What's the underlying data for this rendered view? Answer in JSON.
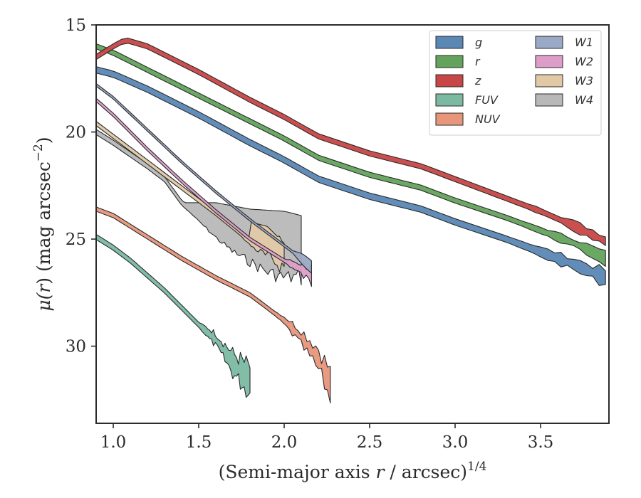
{
  "chart_data": {
    "type": "area",
    "xlabel": "(Semi-major axis r / arcsec)^1/4",
    "xlabel_parts": {
      "pre": "(Semi-major axis ",
      "var": "r",
      "mid": " / arcsec)",
      "sup": "1/4"
    },
    "ylabel": "μ(r) (mag arcsec^−2)",
    "ylabel_parts": {
      "mu": "μ(",
      "var": "r",
      "mid": ") (mag arcsec",
      "sup": "−2",
      "post": ")"
    },
    "xlim": [
      0.9,
      3.9
    ],
    "ylim": [
      33.6,
      15
    ],
    "y_inverted": true,
    "xticks": [
      1.0,
      1.5,
      2.0,
      2.5,
      3.0,
      3.5
    ],
    "xtick_labels": [
      "1.0",
      "1.5",
      "2.0",
      "2.5",
      "3.0",
      "3.5"
    ],
    "yticks": [
      15,
      20,
      25,
      30
    ],
    "ytick_labels": [
      "15",
      "20",
      "25",
      "30"
    ],
    "grid": false,
    "legend_position": "top-right",
    "legend_columns": 2,
    "series": [
      {
        "name": "g",
        "color": "#5a87b4",
        "sigma": 0.15,
        "noise_start": 3.3,
        "noise_amp": 0.25,
        "x": [
          0.9,
          1.0,
          1.2,
          1.5,
          1.8,
          2.0,
          2.2,
          2.5,
          2.8,
          3.0,
          3.3,
          3.5,
          3.7,
          3.88
        ],
        "y": [
          17.1,
          17.3,
          18.0,
          19.2,
          20.5,
          21.3,
          22.2,
          23.0,
          23.6,
          24.2,
          25.0,
          25.6,
          26.2,
          26.8
        ]
      },
      {
        "name": "r",
        "color": "#63a35c",
        "sigma": 0.12,
        "noise_start": 3.4,
        "noise_amp": 0.2,
        "x": [
          0.9,
          1.0,
          1.2,
          1.5,
          1.8,
          2.0,
          2.2,
          2.5,
          2.8,
          3.0,
          3.3,
          3.5,
          3.7,
          3.88
        ],
        "y": [
          16.0,
          16.3,
          17.1,
          18.3,
          19.5,
          20.3,
          21.2,
          22.0,
          22.6,
          23.2,
          24.0,
          24.6,
          25.2,
          25.9
        ]
      },
      {
        "name": "z",
        "color": "#c94646",
        "sigma": 0.12,
        "noise_start": 3.4,
        "noise_amp": 0.2,
        "x": [
          0.9,
          1.0,
          1.07,
          1.2,
          1.5,
          1.8,
          2.0,
          2.2,
          2.5,
          2.8,
          3.0,
          3.3,
          3.5,
          3.7,
          3.88
        ],
        "y": [
          16.5,
          16.0,
          15.7,
          16.0,
          17.2,
          18.5,
          19.3,
          20.2,
          21.0,
          21.6,
          22.2,
          23.1,
          23.7,
          24.4,
          25.1
        ]
      },
      {
        "name": "FUV",
        "color": "#7bb9a3",
        "sigma": 0.12,
        "noise_start": 1.5,
        "noise_amp": 0.7,
        "x": [
          0.9,
          1.0,
          1.1,
          1.2,
          1.3,
          1.4,
          1.5,
          1.6,
          1.7,
          1.8
        ],
        "y": [
          24.9,
          25.4,
          26.0,
          26.7,
          27.4,
          28.2,
          29.0,
          29.7,
          30.8,
          31.6
        ]
      },
      {
        "name": "NUV",
        "color": "#e8967a",
        "sigma": 0.1,
        "noise_start": 1.95,
        "noise_amp": 0.7,
        "x": [
          0.9,
          1.0,
          1.2,
          1.4,
          1.6,
          1.8,
          1.9,
          2.0,
          2.1,
          2.2,
          2.27
        ],
        "y": [
          23.6,
          23.9,
          24.9,
          25.9,
          26.8,
          27.6,
          28.2,
          28.8,
          29.6,
          30.6,
          31.8
        ]
      },
      {
        "name": "W1",
        "color": "#9aa9c6",
        "sigma": 0.06,
        "noise_start": 2.05,
        "noise_amp": 0.3,
        "x": [
          0.9,
          1.0,
          1.2,
          1.4,
          1.6,
          1.8,
          2.0,
          2.1,
          2.16
        ],
        "y": [
          17.8,
          18.4,
          19.9,
          21.4,
          22.8,
          24.1,
          25.3,
          25.9,
          26.3
        ]
      },
      {
        "name": "W2",
        "color": "#dc9dc8",
        "sigma": 0.08,
        "noise_start": 2.0,
        "noise_amp": 0.4,
        "x": [
          0.9,
          1.0,
          1.2,
          1.4,
          1.6,
          1.8,
          2.0,
          2.1,
          2.16
        ],
        "y": [
          18.5,
          19.2,
          20.8,
          22.3,
          23.7,
          25.0,
          26.0,
          26.4,
          26.7
        ]
      },
      {
        "name": "W3",
        "color": "#e2c9a6",
        "sigma": 0.1,
        "noise_start": 1.75,
        "noise_amp": 0.6,
        "x": [
          0.9,
          1.0,
          1.2,
          1.4,
          1.6,
          1.8,
          2.0
        ],
        "y": [
          19.6,
          20.2,
          21.4,
          22.6,
          23.8,
          25.1,
          25.8
        ],
        "upper_override": {
          "x": [
            1.8,
            1.9,
            2.0
          ],
          "y": [
            24.2,
            24.4,
            25.2
          ]
        }
      },
      {
        "name": "W4",
        "color": "#b8b8b8",
        "sigma": 0.12,
        "noise_start": 1.45,
        "noise_amp": 0.6,
        "x": [
          0.9,
          1.0,
          1.2,
          1.3,
          1.4,
          1.5,
          1.6,
          1.7,
          1.8,
          1.9,
          2.0,
          2.1
        ],
        "y": [
          20.0,
          20.5,
          21.6,
          22.2,
          23.3,
          24.0,
          24.7,
          25.3,
          25.7,
          26.1,
          26.3,
          26.2
        ],
        "upper_override": {
          "x": [
            1.4,
            1.6,
            1.8,
            2.0,
            2.1
          ],
          "y": [
            23.3,
            23.3,
            23.6,
            23.7,
            23.9
          ]
        }
      }
    ]
  }
}
